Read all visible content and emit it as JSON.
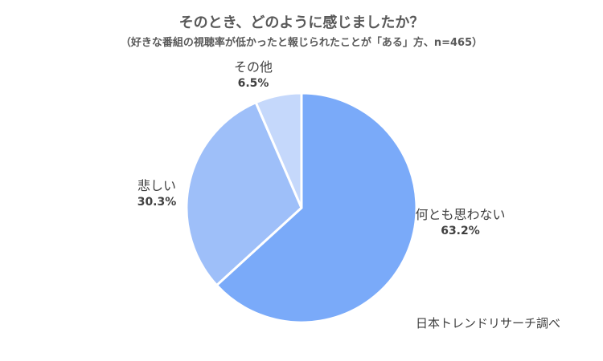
{
  "chart_data": {
    "type": "pie",
    "title": "そのとき、どのように感じましたか？",
    "subtitle": "（好きな番組の視聴率が低かったと報じられたことが「ある」方、n=465）",
    "slices": [
      {
        "label": "何とも思わない",
        "value": 63.2,
        "value_label": "63.2%",
        "color": "#7aaaf9"
      },
      {
        "label": "悲しい",
        "value": 30.3,
        "value_label": "30.3%",
        "color": "#9ebff9"
      },
      {
        "label": "その他",
        "value": 6.5,
        "value_label": "6.5%",
        "color": "#c5d8fb"
      }
    ],
    "start": "12 o'clock",
    "direction": "clockwise",
    "legend": "none",
    "source": "日本トレンドリサーチ調べ"
  }
}
